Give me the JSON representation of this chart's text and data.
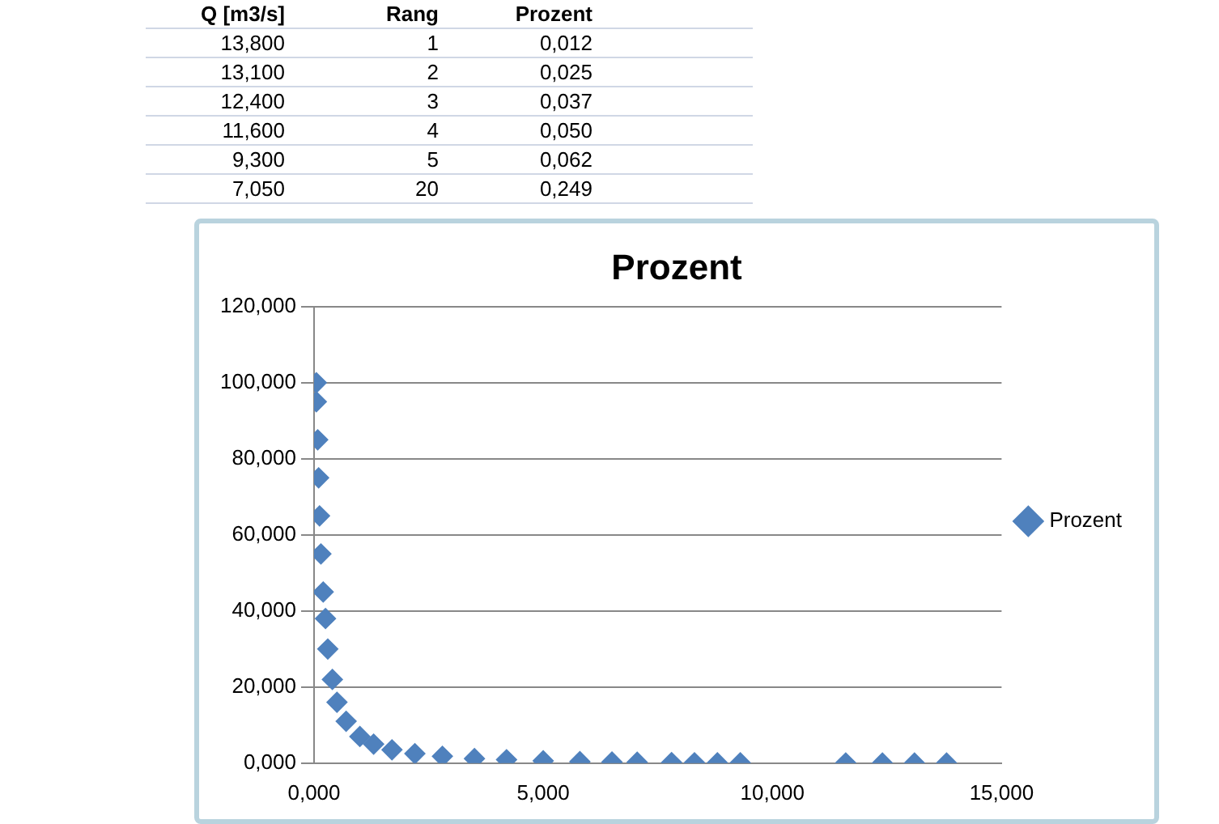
{
  "chart_data": {
    "type": "scatter",
    "title": "Prozent",
    "annotations": [
      "Q [m3/s]",
      "Rang",
      "Prozent",
      "13,800",
      "1",
      "0,012",
      "13,100",
      "2",
      "0,025",
      "12,400",
      "3",
      "0,037",
      "11,600",
      "4",
      "0,050",
      "9,300",
      "5",
      "0,062",
      "7,050",
      "20",
      "0,249"
    ],
    "series": [
      {
        "name": "Prozent",
        "color": "#4f81bd",
        "x": [
          0.05,
          0.05,
          0.08,
          0.1,
          0.12,
          0.15,
          0.2,
          0.25,
          0.3,
          0.4,
          0.5,
          0.7,
          1.0,
          1.3,
          1.7,
          2.2,
          2.8,
          3.5,
          4.2,
          5.0,
          5.8,
          6.5,
          7.05,
          7.8,
          8.3,
          8.8,
          9.3,
          11.6,
          12.4,
          13.1,
          13.8
        ],
        "values": [
          100,
          95,
          85,
          75,
          65,
          55,
          45,
          38,
          30,
          22,
          16,
          11,
          7,
          5,
          3.5,
          2.5,
          1.8,
          1.2,
          0.9,
          0.6,
          0.4,
          0.3,
          0.249,
          0.15,
          0.1,
          0.08,
          0.062,
          0.05,
          0.037,
          0.025,
          0.012
        ]
      }
    ],
    "xlim": [
      0,
      15
    ],
    "xticks": [
      {
        "value": 0,
        "label": "0,000"
      },
      {
        "value": 5,
        "label": "5,000"
      },
      {
        "value": 10,
        "label": "10,000"
      },
      {
        "value": 15,
        "label": "15,000"
      }
    ],
    "ylim": [
      0,
      120
    ],
    "yticks": [
      {
        "value": 0,
        "label": "0,000"
      },
      {
        "value": 20,
        "label": "20,000"
      },
      {
        "value": 40,
        "label": "40,000"
      },
      {
        "value": 60,
        "label": "60,000"
      },
      {
        "value": 80,
        "label": "80,000"
      },
      {
        "value": 100,
        "label": "100,000"
      },
      {
        "value": 120,
        "label": "120,000"
      }
    ],
    "grid": "y",
    "legend": "right",
    "marker": "diamond"
  }
}
